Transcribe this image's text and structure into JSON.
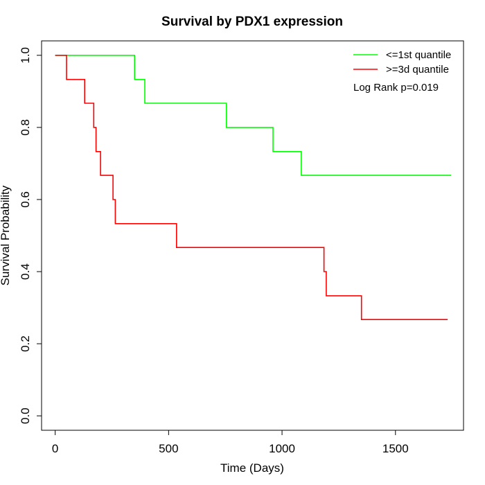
{
  "chart_data": {
    "type": "line",
    "title": "Survival by PDX1 expression",
    "xlabel": "Time (Days)",
    "ylabel": "Survival Probability",
    "xlim": [
      -60,
      1800
    ],
    "ylim": [
      -0.04,
      1.04
    ],
    "xticks": [
      0,
      500,
      1000,
      1500
    ],
    "yticks": [
      0.0,
      0.2,
      0.4,
      0.6,
      0.8,
      1.0
    ],
    "xtick_labels": [
      "0",
      "500",
      "1000",
      "1500"
    ],
    "ytick_labels": [
      "0.0",
      "0.2",
      "0.4",
      "0.6",
      "0.8",
      "1.0"
    ],
    "legend_position": "top-right",
    "annotation": "Log Rank p=0.019",
    "series": [
      {
        "name": "<=1st quantile",
        "color": "#00ff00",
        "steps": [
          [
            0,
            1.0
          ],
          [
            350,
            0.933
          ],
          [
            395,
            0.867
          ],
          [
            755,
            0.8
          ],
          [
            960,
            0.733
          ],
          [
            1085,
            0.667
          ],
          [
            1745,
            0.667
          ]
        ]
      },
      {
        "name": ">=3d quantile",
        "color": "#ff0000",
        "steps": [
          [
            0,
            1.0
          ],
          [
            50,
            0.933
          ],
          [
            130,
            0.867
          ],
          [
            170,
            0.8
          ],
          [
            180,
            0.733
          ],
          [
            200,
            0.667
          ],
          [
            255,
            0.6
          ],
          [
            265,
            0.533
          ],
          [
            535,
            0.467
          ],
          [
            1185,
            0.4
          ],
          [
            1195,
            0.333
          ],
          [
            1350,
            0.267
          ],
          [
            1730,
            0.267
          ]
        ]
      }
    ]
  }
}
